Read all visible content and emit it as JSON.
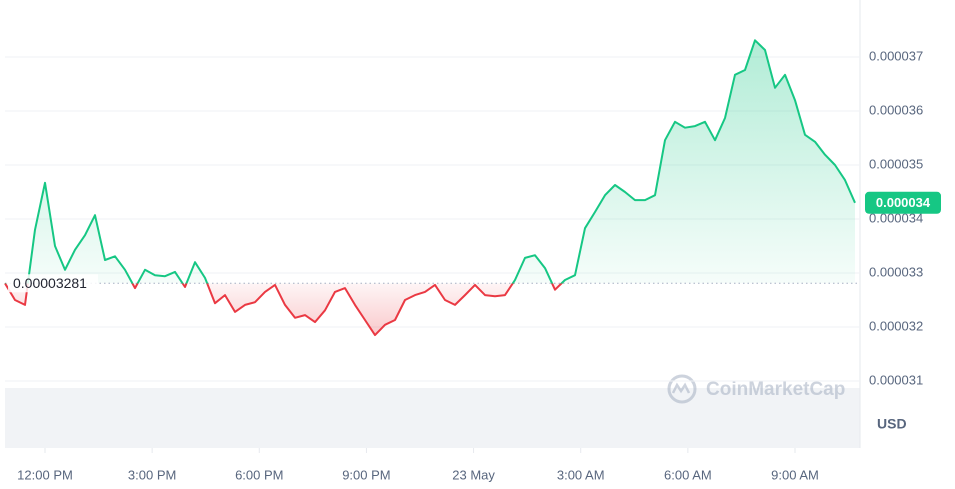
{
  "chart_data": {
    "type": "line",
    "x": [
      10.88,
      11.16,
      11.44,
      11.72,
      12.0,
      12.28,
      12.56,
      12.84,
      13.12,
      13.4,
      13.68,
      13.96,
      14.24,
      14.52,
      14.8,
      15.08,
      15.36,
      15.64,
      15.92,
      16.2,
      16.48,
      16.76,
      17.04,
      17.32,
      17.6,
      17.88,
      18.16,
      18.44,
      18.72,
      19.0,
      19.28,
      19.56,
      19.84,
      20.12,
      20.4,
      20.68,
      20.96,
      21.24,
      21.52,
      21.8,
      22.08,
      22.36,
      22.64,
      22.92,
      23.2,
      23.48,
      23.76,
      24.04,
      24.32,
      24.6,
      24.88,
      25.16,
      25.44,
      25.72,
      26.0,
      26.28,
      26.56,
      26.84,
      27.12,
      27.4,
      27.68,
      27.96,
      28.24,
      28.52,
      28.8,
      29.08,
      29.36,
      29.64,
      29.92,
      30.2,
      30.48,
      30.76,
      31.04,
      31.32,
      31.6,
      31.88,
      32.16,
      32.44,
      32.72,
      33.0,
      33.28,
      33.56,
      33.84,
      34.12,
      34.4,
      34.68
    ],
    "values": [
      3.281e-05,
      3.25e-05,
      3.241e-05,
      3.38e-05,
      3.467e-05,
      3.35e-05,
      3.306e-05,
      3.343e-05,
      3.37e-05,
      3.407e-05,
      3.324e-05,
      3.331e-05,
      3.306e-05,
      3.272e-05,
      3.306e-05,
      3.296e-05,
      3.294e-05,
      3.302e-05,
      3.274e-05,
      3.32e-05,
      3.291e-05,
      3.244e-05,
      3.259e-05,
      3.228e-05,
      3.241e-05,
      3.246e-05,
      3.265e-05,
      3.278e-05,
      3.241e-05,
      3.217e-05,
      3.222e-05,
      3.209e-05,
      3.231e-05,
      3.265e-05,
      3.272e-05,
      3.241e-05,
      3.213e-05,
      3.185e-05,
      3.204e-05,
      3.213e-05,
      3.25e-05,
      3.259e-05,
      3.265e-05,
      3.278e-05,
      3.25e-05,
      3.241e-05,
      3.259e-05,
      3.278e-05,
      3.259e-05,
      3.257e-05,
      3.259e-05,
      3.287e-05,
      3.328e-05,
      3.333e-05,
      3.309e-05,
      3.269e-05,
      3.287e-05,
      3.296e-05,
      3.383e-05,
      3.413e-05,
      3.444e-05,
      3.463e-05,
      3.45e-05,
      3.435e-05,
      3.435e-05,
      3.444e-05,
      3.546e-05,
      3.58e-05,
      3.569e-05,
      3.572e-05,
      3.58e-05,
      3.546e-05,
      3.587e-05,
      3.667e-05,
      3.676e-05,
      3.731e-05,
      3.713e-05,
      3.643e-05,
      3.667e-05,
      3.62e-05,
      3.556e-05,
      3.543e-05,
      3.519e-05,
      3.5e-05,
      3.472e-05,
      3.43e-05
    ],
    "baseline": 3.281e-05,
    "current_label": "0.000034",
    "up_color": "#16c784",
    "down_color": "#ea3943",
    "xlim": [
      10.88,
      34.82
    ],
    "xticks": [
      {
        "value": 12,
        "label": "12:00 PM"
      },
      {
        "value": 15,
        "label": "3:00 PM"
      },
      {
        "value": 18,
        "label": "6:00 PM"
      },
      {
        "value": 21,
        "label": "9:00 PM"
      },
      {
        "value": 24,
        "label": "23 May"
      },
      {
        "value": 27,
        "label": "3:00 AM"
      },
      {
        "value": 30,
        "label": "6:00 AM"
      },
      {
        "value": 33,
        "label": "9:00 AM"
      }
    ],
    "ylim": [
      3.1e-05,
      3.8e-05
    ],
    "yticks": [
      3.1e-05,
      3.2e-05,
      3.3e-05,
      3.4e-05,
      3.5e-05,
      3.6e-05,
      3.7e-05
    ],
    "grid": true,
    "y_unit_label": "USD",
    "watermark": "CoinMarketCap"
  }
}
